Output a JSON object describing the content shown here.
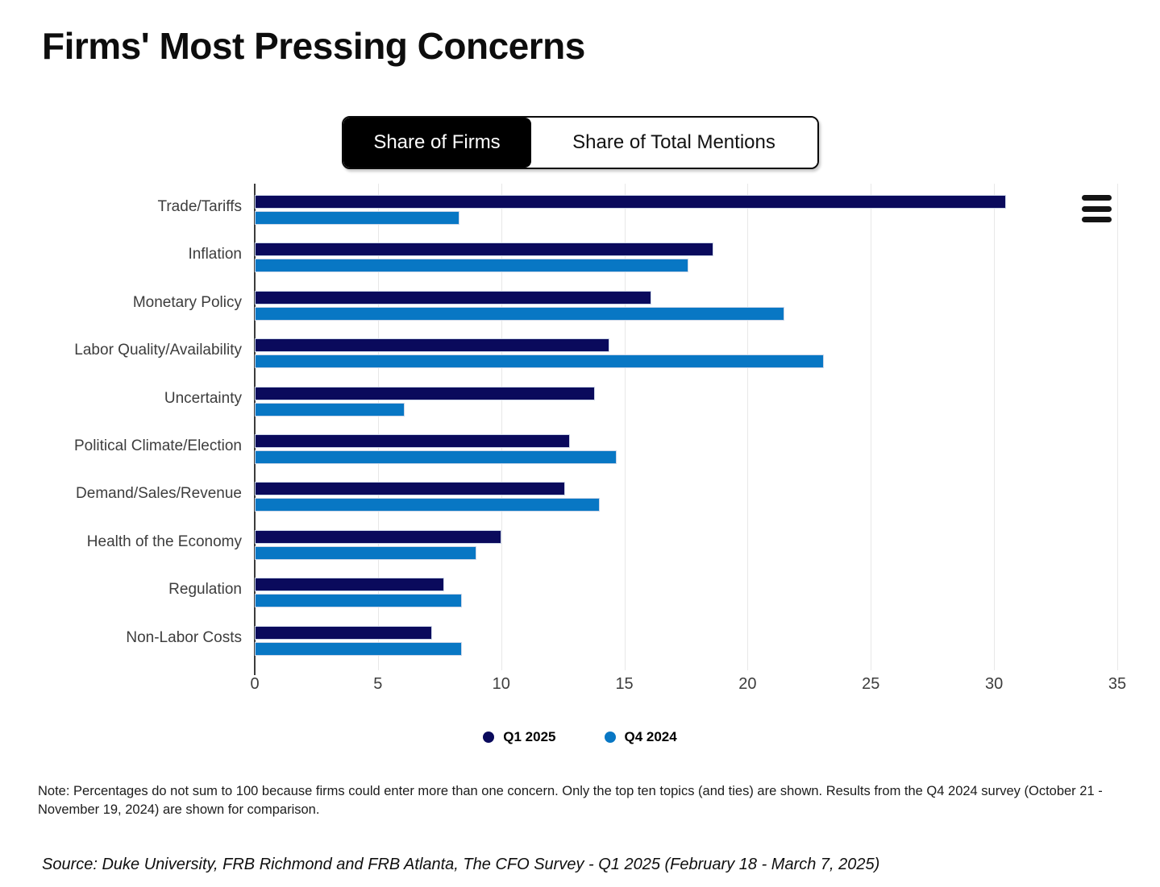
{
  "title": "Firms' Most Pressing Concerns",
  "toggle": {
    "options": [
      {
        "label": "Share of Firms",
        "active": true
      },
      {
        "label": "Share of Total Mentions",
        "active": false
      }
    ]
  },
  "menu": {
    "icon": "hamburger-menu-icon"
  },
  "chart_data": {
    "type": "bar",
    "orientation": "horizontal",
    "title": "Firms' Most Pressing Concerns",
    "categories": [
      "Trade/Tariffs",
      "Inflation",
      "Monetary Policy",
      "Labor Quality/Availability",
      "Uncertainty",
      "Political Climate/Election",
      "Demand/Sales/Revenue",
      "Health of the Economy",
      "Regulation",
      "Non-Labor Costs"
    ],
    "series": [
      {
        "name": "Q1 2025",
        "color": "#0a0a5c",
        "values": [
          30.5,
          18.6,
          16.1,
          14.4,
          13.8,
          12.8,
          12.6,
          10.0,
          7.7,
          7.2
        ]
      },
      {
        "name": "Q4 2024",
        "color": "#0877c4",
        "values": [
          8.3,
          17.6,
          21.5,
          23.1,
          6.1,
          14.7,
          14.0,
          9.0,
          8.4,
          8.4
        ]
      }
    ],
    "xlim": [
      0,
      35
    ],
    "xticks": [
      0,
      5,
      10,
      15,
      20,
      25,
      30,
      35
    ],
    "grid": "vertical",
    "legend_position": "bottom-center"
  },
  "note": "Note: Percentages do not sum to 100 because firms could enter more than one concern. Only the top ten topics (and ties) are shown.  Results from the Q4 2024 survey (October 21 - November 19, 2024) are shown for comparison.",
  "source": "Source: Duke University, FRB Richmond and FRB Atlanta, The CFO Survey - Q1 2025 (February 18 - March 7, 2025)"
}
